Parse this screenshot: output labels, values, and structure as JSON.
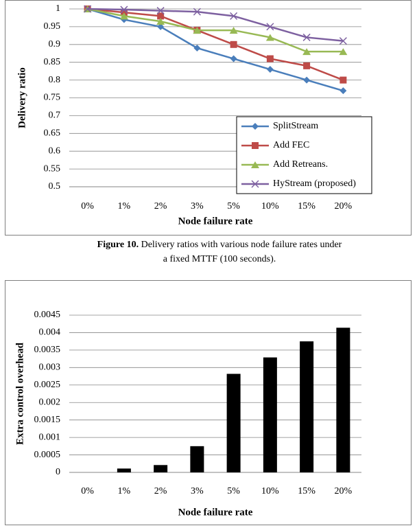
{
  "chart_data": [
    {
      "type": "line",
      "caption_label": "Figure 10.",
      "caption": "Delivery ratios with various node failure rates under a fixed MTTF (100 seconds).",
      "ylabel": "Delivery ratio",
      "xlabel": "Node failure rate",
      "categories": [
        "0%",
        "1%",
        "2%",
        "3%",
        "5%",
        "10%",
        "15%",
        "20%"
      ],
      "ylim": [
        0.5,
        1
      ],
      "yticks": [
        0.5,
        0.55,
        0.6,
        0.65,
        0.7,
        0.75,
        0.8,
        0.85,
        0.9,
        0.95,
        1
      ],
      "grid": true,
      "legend": "lower right",
      "series": [
        {
          "name": "SplitStream",
          "color": "#4a7ebb",
          "marker": "diamond",
          "values": [
            1,
            0.97,
            0.95,
            0.89,
            0.86,
            0.83,
            0.8,
            0.77
          ]
        },
        {
          "name": "Add FEC",
          "color": "#be4b48",
          "marker": "square",
          "values": [
            1,
            0.99,
            0.98,
            0.94,
            0.9,
            0.86,
            0.84,
            0.8
          ]
        },
        {
          "name": "Add Retreans.",
          "color": "#98b954",
          "marker": "triangle",
          "values": [
            1,
            0.98,
            0.965,
            0.94,
            0.94,
            0.92,
            0.88,
            0.88
          ]
        },
        {
          "name": "HyStream (proposed)",
          "color": "#7d60a0",
          "marker": "x",
          "values": [
            1,
            0.998,
            0.995,
            0.992,
            0.98,
            0.95,
            0.92,
            0.91
          ]
        }
      ]
    },
    {
      "type": "bar",
      "ylabel": "Extra control overhead",
      "xlabel": "Node failure rate",
      "categories": [
        "0%",
        "1%",
        "2%",
        "3%",
        "5%",
        "10%",
        "15%",
        "20%"
      ],
      "values": [
        0,
        0.00011,
        0.00021,
        0.00075,
        0.00282,
        0.00329,
        0.00375,
        0.00414
      ],
      "color": "#000000",
      "ylim": [
        0,
        0.0045
      ],
      "yticks": [
        0,
        0.0005,
        0.001,
        0.0015,
        0.002,
        0.0025,
        0.003,
        0.0035,
        0.004,
        0.0045
      ],
      "grid": true
    }
  ]
}
